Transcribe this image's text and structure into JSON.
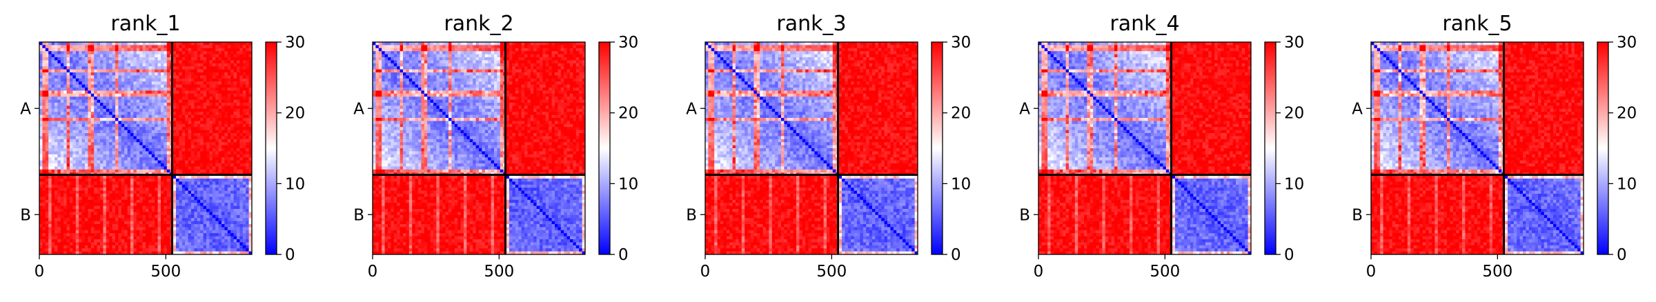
{
  "figure": {
    "colormap": {
      "low": "#0000ff",
      "mid": "#ffffff",
      "high": "#ff0000"
    }
  },
  "chart_data": [
    {
      "type": "heatmap",
      "title": "rank_1",
      "xticks": [
        0,
        500
      ],
      "x_range": [
        0,
        840
      ],
      "yticklabels": [
        "A",
        "B"
      ],
      "segments": [
        {
          "name": "A",
          "start": 0,
          "end": 525
        },
        {
          "name": "B",
          "start": 525,
          "end": 840
        }
      ],
      "colorbar": {
        "range": [
          0,
          30
        ],
        "ticks": [
          0,
          10,
          20,
          30
        ]
      },
      "grid": false
    },
    {
      "type": "heatmap",
      "title": "rank_2",
      "xticks": [
        0,
        500
      ],
      "x_range": [
        0,
        840
      ],
      "yticklabels": [
        "A",
        "B"
      ],
      "segments": [
        {
          "name": "A",
          "start": 0,
          "end": 525
        },
        {
          "name": "B",
          "start": 525,
          "end": 840
        }
      ],
      "colorbar": {
        "range": [
          0,
          30
        ],
        "ticks": [
          0,
          10,
          20,
          30
        ]
      },
      "grid": false
    },
    {
      "type": "heatmap",
      "title": "rank_3",
      "xticks": [
        0,
        500
      ],
      "x_range": [
        0,
        840
      ],
      "yticklabels": [
        "A",
        "B"
      ],
      "segments": [
        {
          "name": "A",
          "start": 0,
          "end": 525
        },
        {
          "name": "B",
          "start": 525,
          "end": 840
        }
      ],
      "colorbar": {
        "range": [
          0,
          30
        ],
        "ticks": [
          0,
          10,
          20,
          30
        ]
      },
      "grid": false
    },
    {
      "type": "heatmap",
      "title": "rank_4",
      "xticks": [
        0,
        500
      ],
      "x_range": [
        0,
        840
      ],
      "yticklabels": [
        "A",
        "B"
      ],
      "segments": [
        {
          "name": "A",
          "start": 0,
          "end": 525
        },
        {
          "name": "B",
          "start": 525,
          "end": 840
        }
      ],
      "colorbar": {
        "range": [
          0,
          30
        ],
        "ticks": [
          0,
          10,
          20,
          30
        ]
      },
      "grid": false
    },
    {
      "type": "heatmap",
      "title": "rank_5",
      "xticks": [
        0,
        500
      ],
      "x_range": [
        0,
        840
      ],
      "yticklabels": [
        "A",
        "B"
      ],
      "segments": [
        {
          "name": "A",
          "start": 0,
          "end": 525
        },
        {
          "name": "B",
          "start": 525,
          "end": 840
        }
      ],
      "colorbar": {
        "range": [
          0,
          30
        ],
        "ticks": [
          0,
          10,
          20,
          30
        ]
      },
      "grid": false
    }
  ]
}
